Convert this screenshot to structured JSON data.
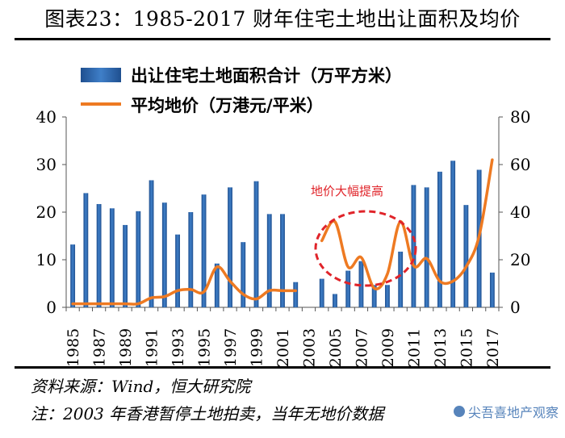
{
  "title": "图表23：1985-2017 财年住宅土地出让面积及均价",
  "colors": {
    "bar": "#3f7fc8",
    "bar_dark": "#1f4f8f",
    "line": "#ee7a22",
    "ellipse": "#e0242a",
    "annot": "#e0242a"
  },
  "footer": {
    "source": "资料来源：Wind，恒大研究院",
    "note": "注：2003 年香港暂停土地拍卖，当年无地价数据",
    "watermark": "尖吾喜地产观察"
  },
  "chart_data": {
    "type": "bar+line",
    "categories": [
      "1985",
      "1986",
      "1987",
      "1988",
      "1989",
      "1990",
      "1991",
      "1992",
      "1993",
      "1994",
      "1995",
      "1996",
      "1997",
      "1998",
      "1999",
      "2000",
      "2001",
      "2002",
      "2003",
      "2004",
      "2005",
      "2006",
      "2007",
      "2008",
      "2009",
      "2010",
      "2011",
      "2012",
      "2013",
      "2014",
      "2015",
      "2016",
      "2017"
    ],
    "x_tick_labels": [
      "1985",
      "1987",
      "1989",
      "1991",
      "1993",
      "1995",
      "1997",
      "1999",
      "2001",
      "2003",
      "2005",
      "2007",
      "2009",
      "2011",
      "2013",
      "2015",
      "2017"
    ],
    "series": [
      {
        "name": "出让住宅土地面积合计（万平方米）",
        "type": "bar",
        "axis": "left",
        "values": [
          13.2,
          24.0,
          21.7,
          20.8,
          17.3,
          20.2,
          26.7,
          22.0,
          15.3,
          20.0,
          23.7,
          9.2,
          25.2,
          13.7,
          26.5,
          19.6,
          19.6,
          5.3,
          0,
          6.0,
          2.8,
          7.7,
          9.7,
          4.7,
          4.7,
          11.7,
          25.7,
          25.2,
          28.5,
          30.8,
          21.5,
          28.9,
          7.3
        ]
      },
      {
        "name": "平均地价（万港元/平米）",
        "type": "line",
        "axis": "right",
        "values": [
          1.5,
          1.5,
          1.5,
          1.5,
          1.5,
          1.5,
          4.0,
          4.5,
          7.0,
          7.5,
          6.5,
          17.0,
          11.0,
          5.5,
          3.5,
          7.0,
          7.0,
          7.0,
          null,
          28.0,
          36.0,
          17.0,
          21.0,
          8.0,
          14.0,
          36.0,
          17.5,
          20.5,
          11.0,
          11.0,
          17.0,
          30.0,
          62.0
        ]
      }
    ],
    "y_left": {
      "min": 0,
      "max": 40,
      "ticks": [
        "0",
        "10",
        "20",
        "30",
        "40"
      ]
    },
    "y_right": {
      "min": 0,
      "max": 80,
      "ticks": [
        "0",
        "20",
        "40",
        "60",
        "80"
      ]
    },
    "annotation": "地价大幅提高",
    "legend_position": "top"
  }
}
